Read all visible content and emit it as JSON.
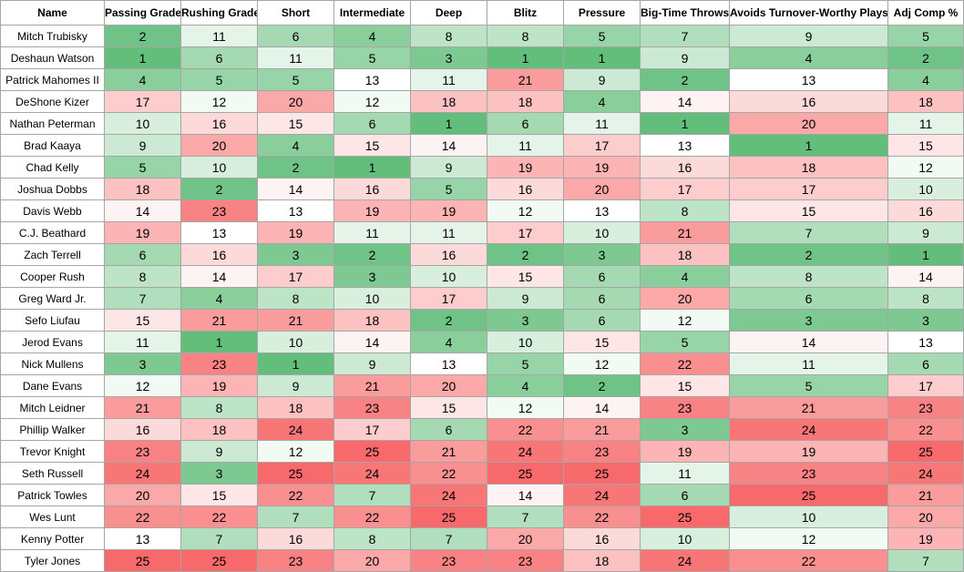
{
  "chart_data": {
    "type": "table",
    "columns": [
      "Name",
      "Passing Grade",
      "Rushing Grade",
      "Short",
      "Intermediate",
      "Deep",
      "Blitz",
      "Pressure",
      "Big-Time Throws",
      "Avoids Turnover-Worthy Plays",
      "Adj Comp %"
    ],
    "rows": [
      {
        "name": "Mitch Trubisky",
        "values": [
          2,
          11,
          6,
          4,
          8,
          8,
          5,
          7,
          9,
          5
        ]
      },
      {
        "name": "Deshaun Watson",
        "values": [
          1,
          6,
          11,
          5,
          3,
          1,
          1,
          9,
          4,
          2
        ]
      },
      {
        "name": "Patrick Mahomes II",
        "values": [
          4,
          5,
          5,
          13,
          11,
          21,
          9,
          2,
          13,
          4
        ]
      },
      {
        "name": "DeShone Kizer",
        "values": [
          17,
          12,
          20,
          12,
          18,
          18,
          4,
          14,
          16,
          18
        ]
      },
      {
        "name": "Nathan Peterman",
        "values": [
          10,
          16,
          15,
          6,
          1,
          6,
          11,
          1,
          20,
          11
        ]
      },
      {
        "name": "Brad Kaaya",
        "values": [
          9,
          20,
          4,
          15,
          14,
          11,
          17,
          13,
          1,
          15
        ]
      },
      {
        "name": "Chad Kelly",
        "values": [
          5,
          10,
          2,
          1,
          9,
          19,
          19,
          16,
          18,
          12
        ]
      },
      {
        "name": "Joshua Dobbs",
        "values": [
          18,
          2,
          14,
          16,
          5,
          16,
          20,
          17,
          17,
          10
        ]
      },
      {
        "name": "Davis Webb",
        "values": [
          14,
          23,
          13,
          19,
          19,
          12,
          13,
          8,
          15,
          16
        ]
      },
      {
        "name": "C.J. Beathard",
        "values": [
          19,
          13,
          19,
          11,
          11,
          17,
          10,
          21,
          7,
          9
        ]
      },
      {
        "name": "Zach Terrell",
        "values": [
          6,
          16,
          3,
          2,
          16,
          2,
          3,
          18,
          2,
          1
        ]
      },
      {
        "name": "Cooper Rush",
        "values": [
          8,
          14,
          17,
          3,
          10,
          15,
          6,
          4,
          8,
          14
        ]
      },
      {
        "name": "Greg Ward Jr.",
        "values": [
          7,
          4,
          8,
          10,
          17,
          9,
          6,
          20,
          6,
          8
        ]
      },
      {
        "name": "Sefo Liufau",
        "values": [
          15,
          21,
          21,
          18,
          2,
          3,
          6,
          12,
          3,
          3
        ]
      },
      {
        "name": "Jerod Evans",
        "values": [
          11,
          1,
          10,
          14,
          4,
          10,
          15,
          5,
          14,
          13
        ]
      },
      {
        "name": "Nick Mullens",
        "values": [
          3,
          23,
          1,
          9,
          13,
          5,
          12,
          22,
          11,
          6
        ]
      },
      {
        "name": "Dane Evans",
        "values": [
          12,
          19,
          9,
          21,
          20,
          4,
          2,
          15,
          5,
          17
        ]
      },
      {
        "name": "Mitch Leidner",
        "values": [
          21,
          8,
          18,
          23,
          15,
          12,
          14,
          23,
          21,
          23
        ]
      },
      {
        "name": "Phillip Walker",
        "values": [
          16,
          18,
          24,
          17,
          6,
          22,
          21,
          3,
          24,
          22
        ]
      },
      {
        "name": "Trevor Knight",
        "values": [
          23,
          9,
          12,
          25,
          21,
          24,
          23,
          19,
          19,
          25
        ]
      },
      {
        "name": "Seth Russell",
        "values": [
          24,
          3,
          25,
          24,
          22,
          25,
          25,
          11,
          23,
          24
        ]
      },
      {
        "name": "Patrick Towles",
        "values": [
          20,
          15,
          22,
          7,
          24,
          14,
          24,
          6,
          25,
          21
        ]
      },
      {
        "name": "Wes Lunt",
        "values": [
          22,
          22,
          7,
          22,
          25,
          7,
          22,
          25,
          10,
          20
        ]
      },
      {
        "name": "Kenny Potter",
        "values": [
          13,
          7,
          16,
          8,
          7,
          20,
          16,
          10,
          12,
          19
        ]
      },
      {
        "name": "Tyler Jones",
        "values": [
          25,
          25,
          23,
          20,
          23,
          23,
          18,
          24,
          22,
          7
        ]
      }
    ],
    "color_scale": {
      "low": "#63be7b",
      "mid": "#ffffff",
      "high": "#f8696b",
      "min": 1,
      "mid_value": 13,
      "max": 25
    }
  }
}
